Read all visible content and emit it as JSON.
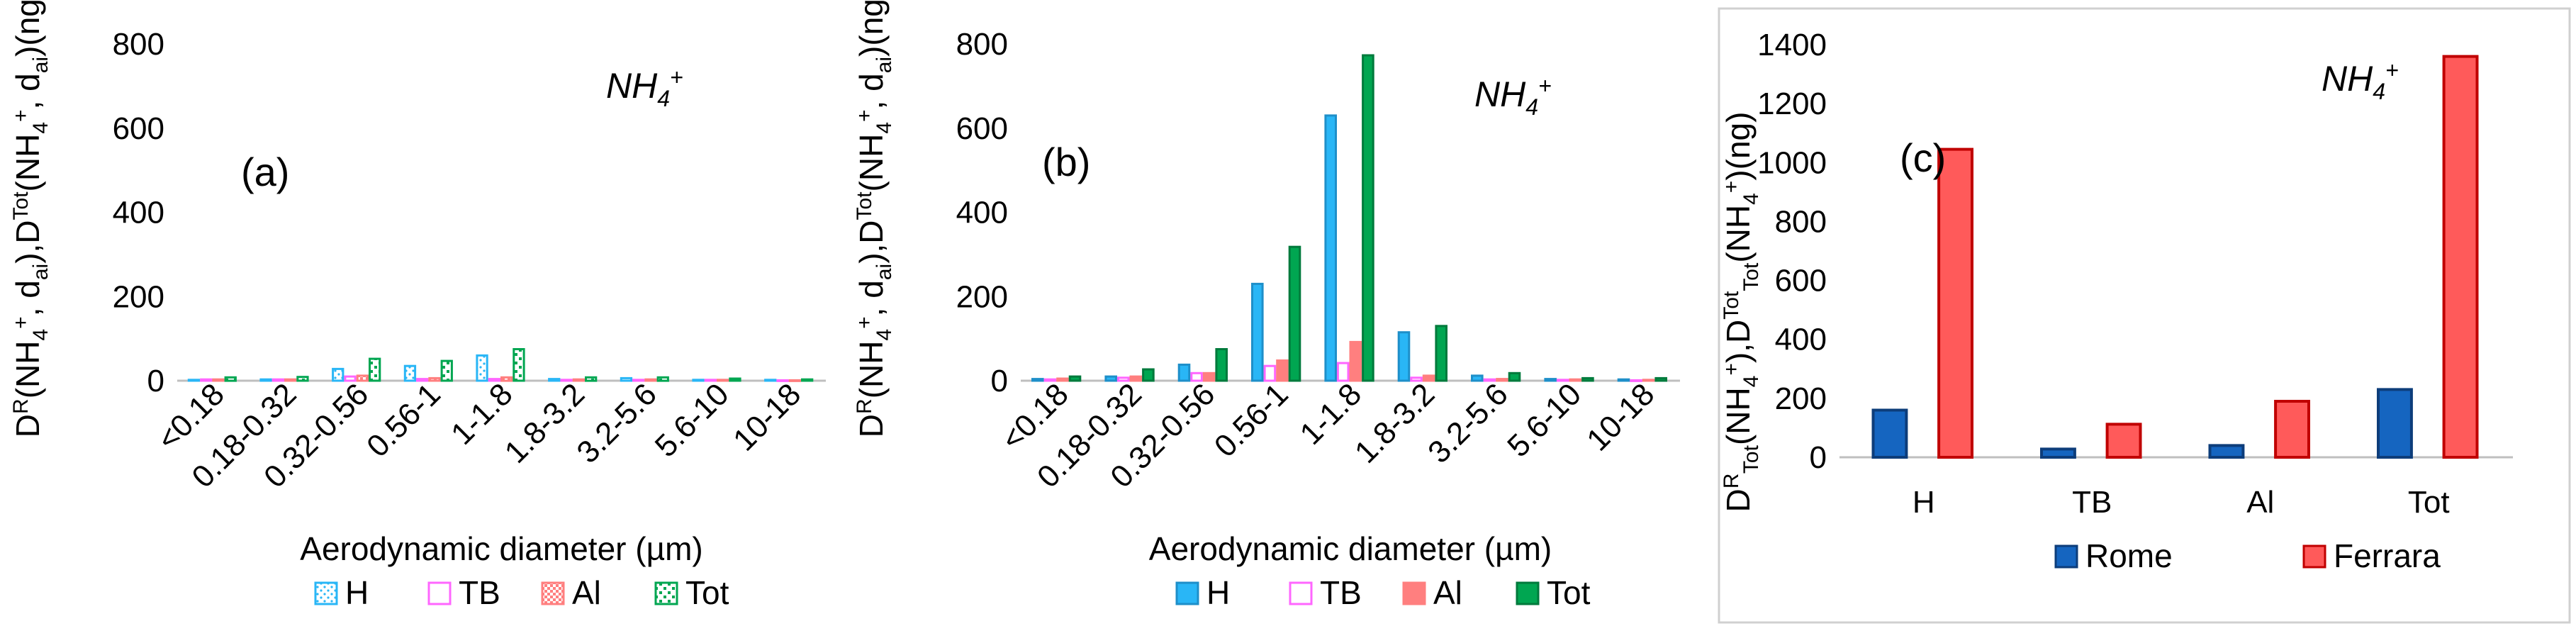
{
  "chart_data": [
    {
      "type": "bar",
      "panel_label": "(a)",
      "annotation": {
        "base": "NH",
        "sub": "4",
        "sup": "+"
      },
      "xlabel": "Aerodynamic diameter (µm)",
      "ylabel_parts": [
        "D",
        "R",
        "(NH",
        "4",
        "+",
        ", d",
        "ai",
        "),D",
        "Tot",
        "(NH",
        "4",
        "+",
        ", d",
        "ai",
        ")(ng)"
      ],
      "ylim": [
        0,
        800
      ],
      "yticks": [
        "0",
        "200",
        "400",
        "600",
        "800"
      ],
      "grid": false,
      "legend_position": "bottom",
      "categories": [
        "<0.18",
        "0.18-0.32",
        "0.32-0.56",
        "0.56-1",
        "1-1.8",
        "1.8-3.2",
        "3.2-5.6",
        "5.6-10",
        "10-18"
      ],
      "series": [
        {
          "name": "H",
          "values": [
            2,
            3,
            28,
            35,
            60,
            4,
            6,
            2,
            2
          ]
        },
        {
          "name": "TB",
          "values": [
            3,
            3,
            10,
            4,
            4,
            2,
            2,
            2,
            1
          ]
        },
        {
          "name": "Al",
          "values": [
            3,
            3,
            12,
            6,
            8,
            3,
            3,
            2,
            1
          ]
        },
        {
          "name": "Tot",
          "values": [
            8,
            9,
            52,
            47,
            75,
            8,
            8,
            5,
            3
          ]
        }
      ]
    },
    {
      "type": "bar",
      "panel_label": "(b)",
      "annotation": {
        "base": "NH",
        "sub": "4",
        "sup": "+"
      },
      "xlabel": "Aerodynamic diameter (µm)",
      "ylabel_parts": [
        "D",
        "R",
        "(NH",
        "4",
        "+",
        ", d",
        "ai",
        "),D",
        "Tot",
        "(NH",
        "4",
        "+",
        ", d",
        "ai",
        ")(ng)"
      ],
      "ylim": [
        0,
        800
      ],
      "yticks": [
        "0",
        "200",
        "400",
        "600",
        "800"
      ],
      "grid": false,
      "legend_position": "bottom",
      "categories": [
        "<0.18",
        "0.18-0.32",
        "0.32-0.56",
        "0.56-1",
        "1-1.8",
        "1.8-3.2",
        "3.2-5.6",
        "5.6-10",
        "10-18"
      ],
      "series": [
        {
          "name": "H",
          "values": [
            4,
            10,
            38,
            230,
            630,
            115,
            12,
            4,
            3
          ]
        },
        {
          "name": "TB",
          "values": [
            3,
            7,
            18,
            35,
            42,
            7,
            3,
            2,
            1
          ]
        },
        {
          "name": "Al",
          "values": [
            5,
            10,
            18,
            48,
            92,
            12,
            4,
            3,
            2
          ]
        },
        {
          "name": "Tot",
          "values": [
            10,
            27,
            75,
            318,
            773,
            130,
            18,
            6,
            6
          ]
        }
      ]
    },
    {
      "type": "bar",
      "panel_label": "(c)",
      "annotation": {
        "base": "NH",
        "sub": "4",
        "sup": "+"
      },
      "xlabel": "",
      "ylabel_parts": [
        "D",
        "R",
        "Tot",
        "(NH",
        "4",
        "+",
        "),D",
        "Tot",
        "Tot",
        "(NH",
        "4",
        "+",
        ")(ng)"
      ],
      "ylim": [
        0,
        1400
      ],
      "yticks": [
        "0",
        "200",
        "400",
        "600",
        "800",
        "1000",
        "1200",
        "1400"
      ],
      "grid": false,
      "legend_position": "bottom",
      "categories": [
        "H",
        "TB",
        "Al",
        "Tot"
      ],
      "series": [
        {
          "name": "Rome",
          "values": [
            160,
            28,
            40,
            230
          ]
        },
        {
          "name": "Ferrara",
          "values": [
            1045,
            112,
            190,
            1360
          ]
        }
      ]
    }
  ],
  "colors": {
    "H": "#29B6F6",
    "TB": "#FF66FF",
    "Al": "#FF7F7F",
    "Tot": "#00A651",
    "Rome": "#1565C0",
    "Ferrara": "#FF5A5A",
    "Rome_edge": "#0D3D7A",
    "Ferrara_edge": "#C00000"
  }
}
